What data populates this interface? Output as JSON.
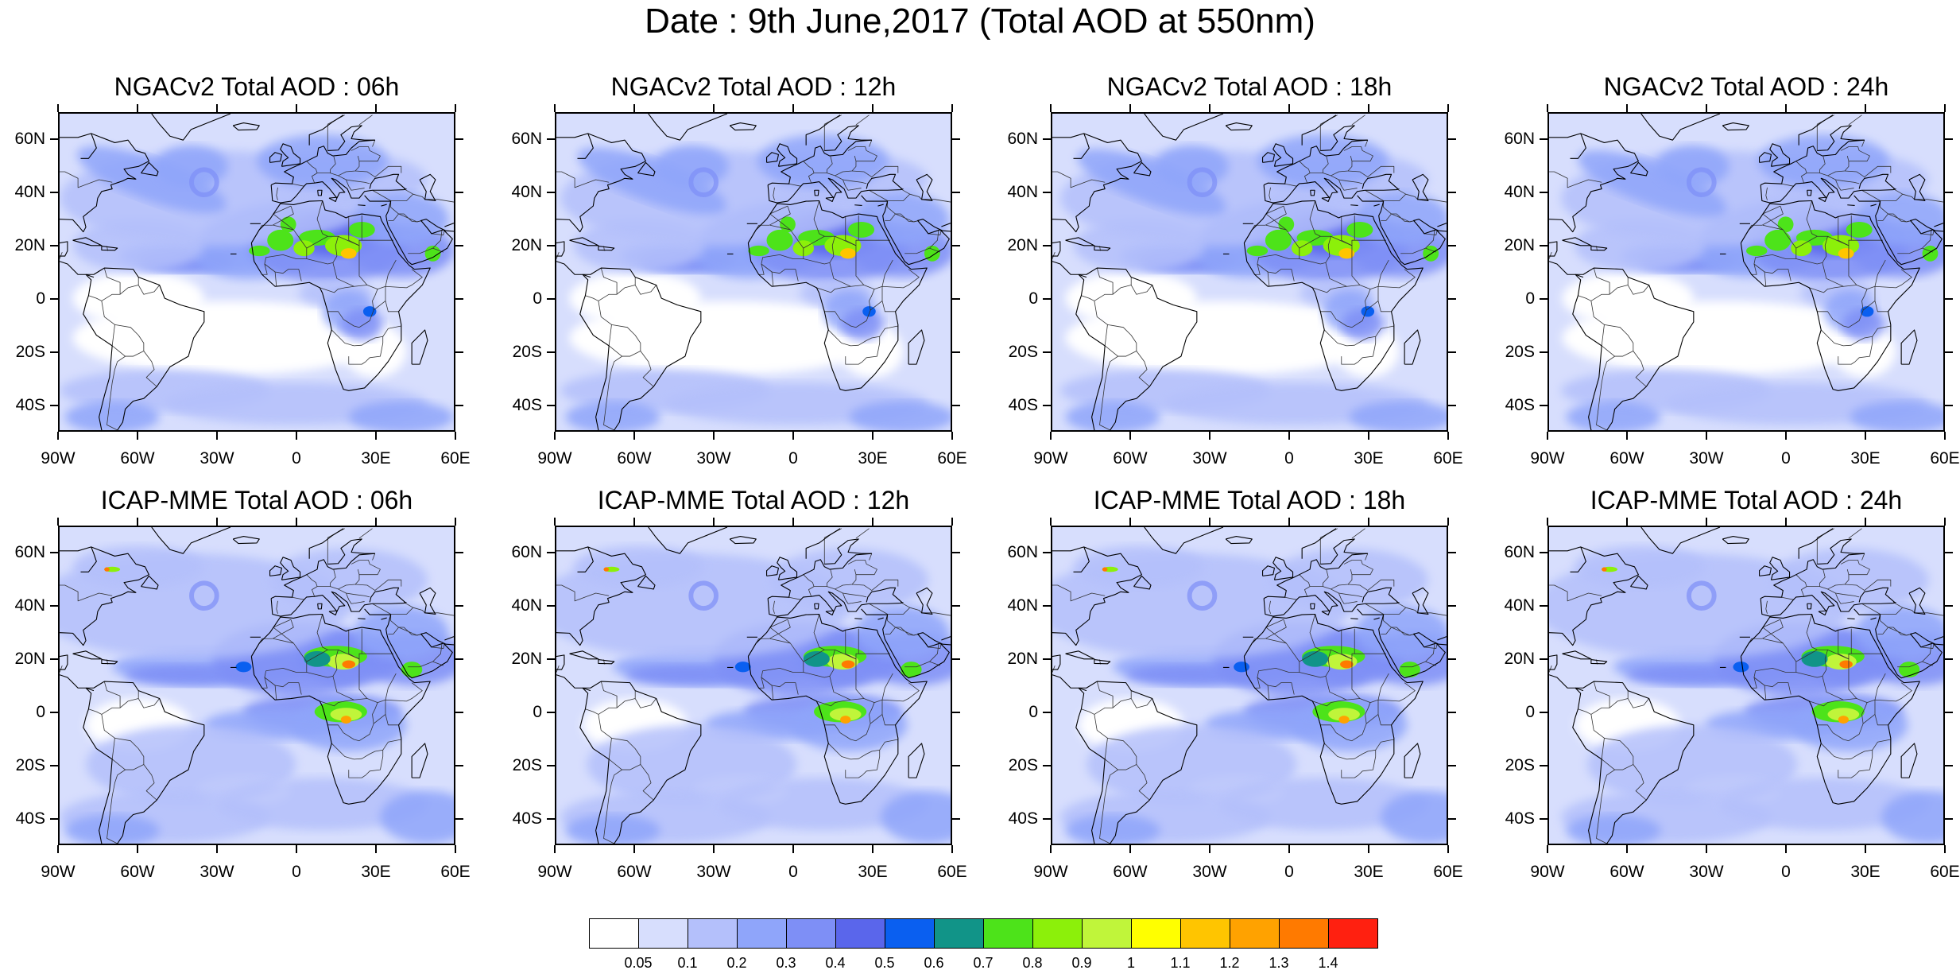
{
  "title": "Date : 9th June,2017 (Total AOD at 550nm)",
  "lat_ticks": [
    "60N",
    "40N",
    "20N",
    "0",
    "20S",
    "40S"
  ],
  "lon_ticks": [
    "90W",
    "60W",
    "30W",
    "0",
    "30E",
    "60E"
  ],
  "lat_values": [
    60,
    40,
    20,
    0,
    -20,
    -40
  ],
  "lon_values": [
    -90,
    -60,
    -30,
    0,
    30,
    60
  ],
  "extent": {
    "lon_min": -90,
    "lon_max": 60,
    "lat_min": -50,
    "lat_max": 70
  },
  "panels": [
    {
      "title": "NGACv2 Total AOD : 06h",
      "model": "ngac",
      "hour": 6
    },
    {
      "title": "NGACv2 Total AOD : 12h",
      "model": "ngac",
      "hour": 12
    },
    {
      "title": "NGACv2 Total AOD : 18h",
      "model": "ngac",
      "hour": 18
    },
    {
      "title": "NGACv2 Total AOD : 24h",
      "model": "ngac",
      "hour": 24
    },
    {
      "title": "ICAP-MME Total AOD : 06h",
      "model": "icap",
      "hour": 6
    },
    {
      "title": "ICAP-MME Total AOD : 12h",
      "model": "icap",
      "hour": 12
    },
    {
      "title": "ICAP-MME Total AOD : 18h",
      "model": "icap",
      "hour": 18
    },
    {
      "title": "ICAP-MME Total AOD : 24h",
      "model": "icap",
      "hour": 24
    }
  ],
  "colorbar": {
    "labels": [
      "0.05",
      "0.1",
      "0.2",
      "0.3",
      "0.4",
      "0.5",
      "0.6",
      "0.7",
      "0.8",
      "0.9",
      "1",
      "1.1",
      "1.2",
      "1.3",
      "1.4"
    ],
    "colors": [
      "#ffffff",
      "#d7defd",
      "#b4c0fb",
      "#8fa5fa",
      "#7e8ff6",
      "#5a66eb",
      "#0a5ff0",
      "#119488",
      "#4de31a",
      "#8cf00a",
      "#c0f53a",
      "#ffff00",
      "#ffc500",
      "#ffa200",
      "#ff7a00",
      "#ff2010"
    ]
  }
}
